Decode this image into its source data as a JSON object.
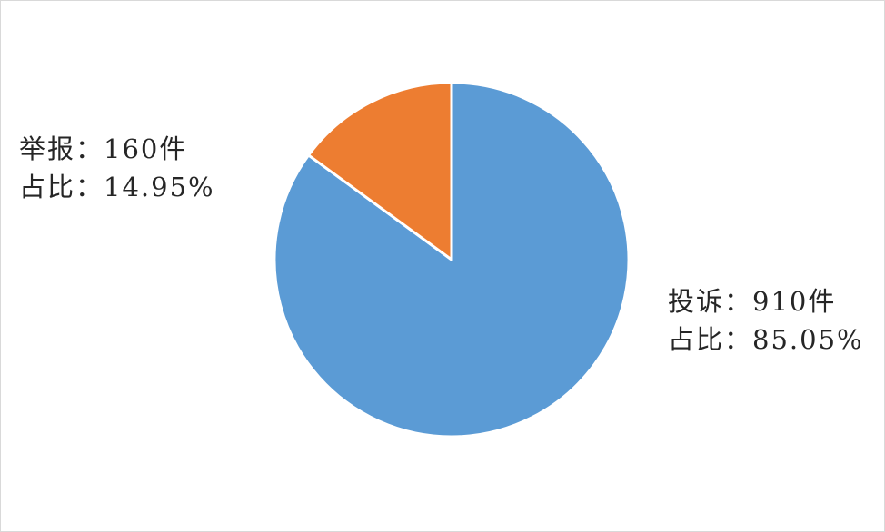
{
  "chart_data": {
    "type": "pie",
    "start_angle": "top",
    "direction": "clockwise",
    "slices": [
      {
        "name": "投诉",
        "value": 910,
        "unit": "件",
        "percent": 85.05,
        "color": "#5B9BD5",
        "label_lines": [
          "投诉：910件",
          "占比：85.05%"
        ]
      },
      {
        "name": "举报",
        "value": 160,
        "unit": "件",
        "percent": 14.95,
        "color": "#ED7D31",
        "label_lines": [
          "举报：160件",
          "占比：14.95%"
        ]
      }
    ],
    "slice_border_color": "#FFFFFF",
    "legend": "none"
  }
}
